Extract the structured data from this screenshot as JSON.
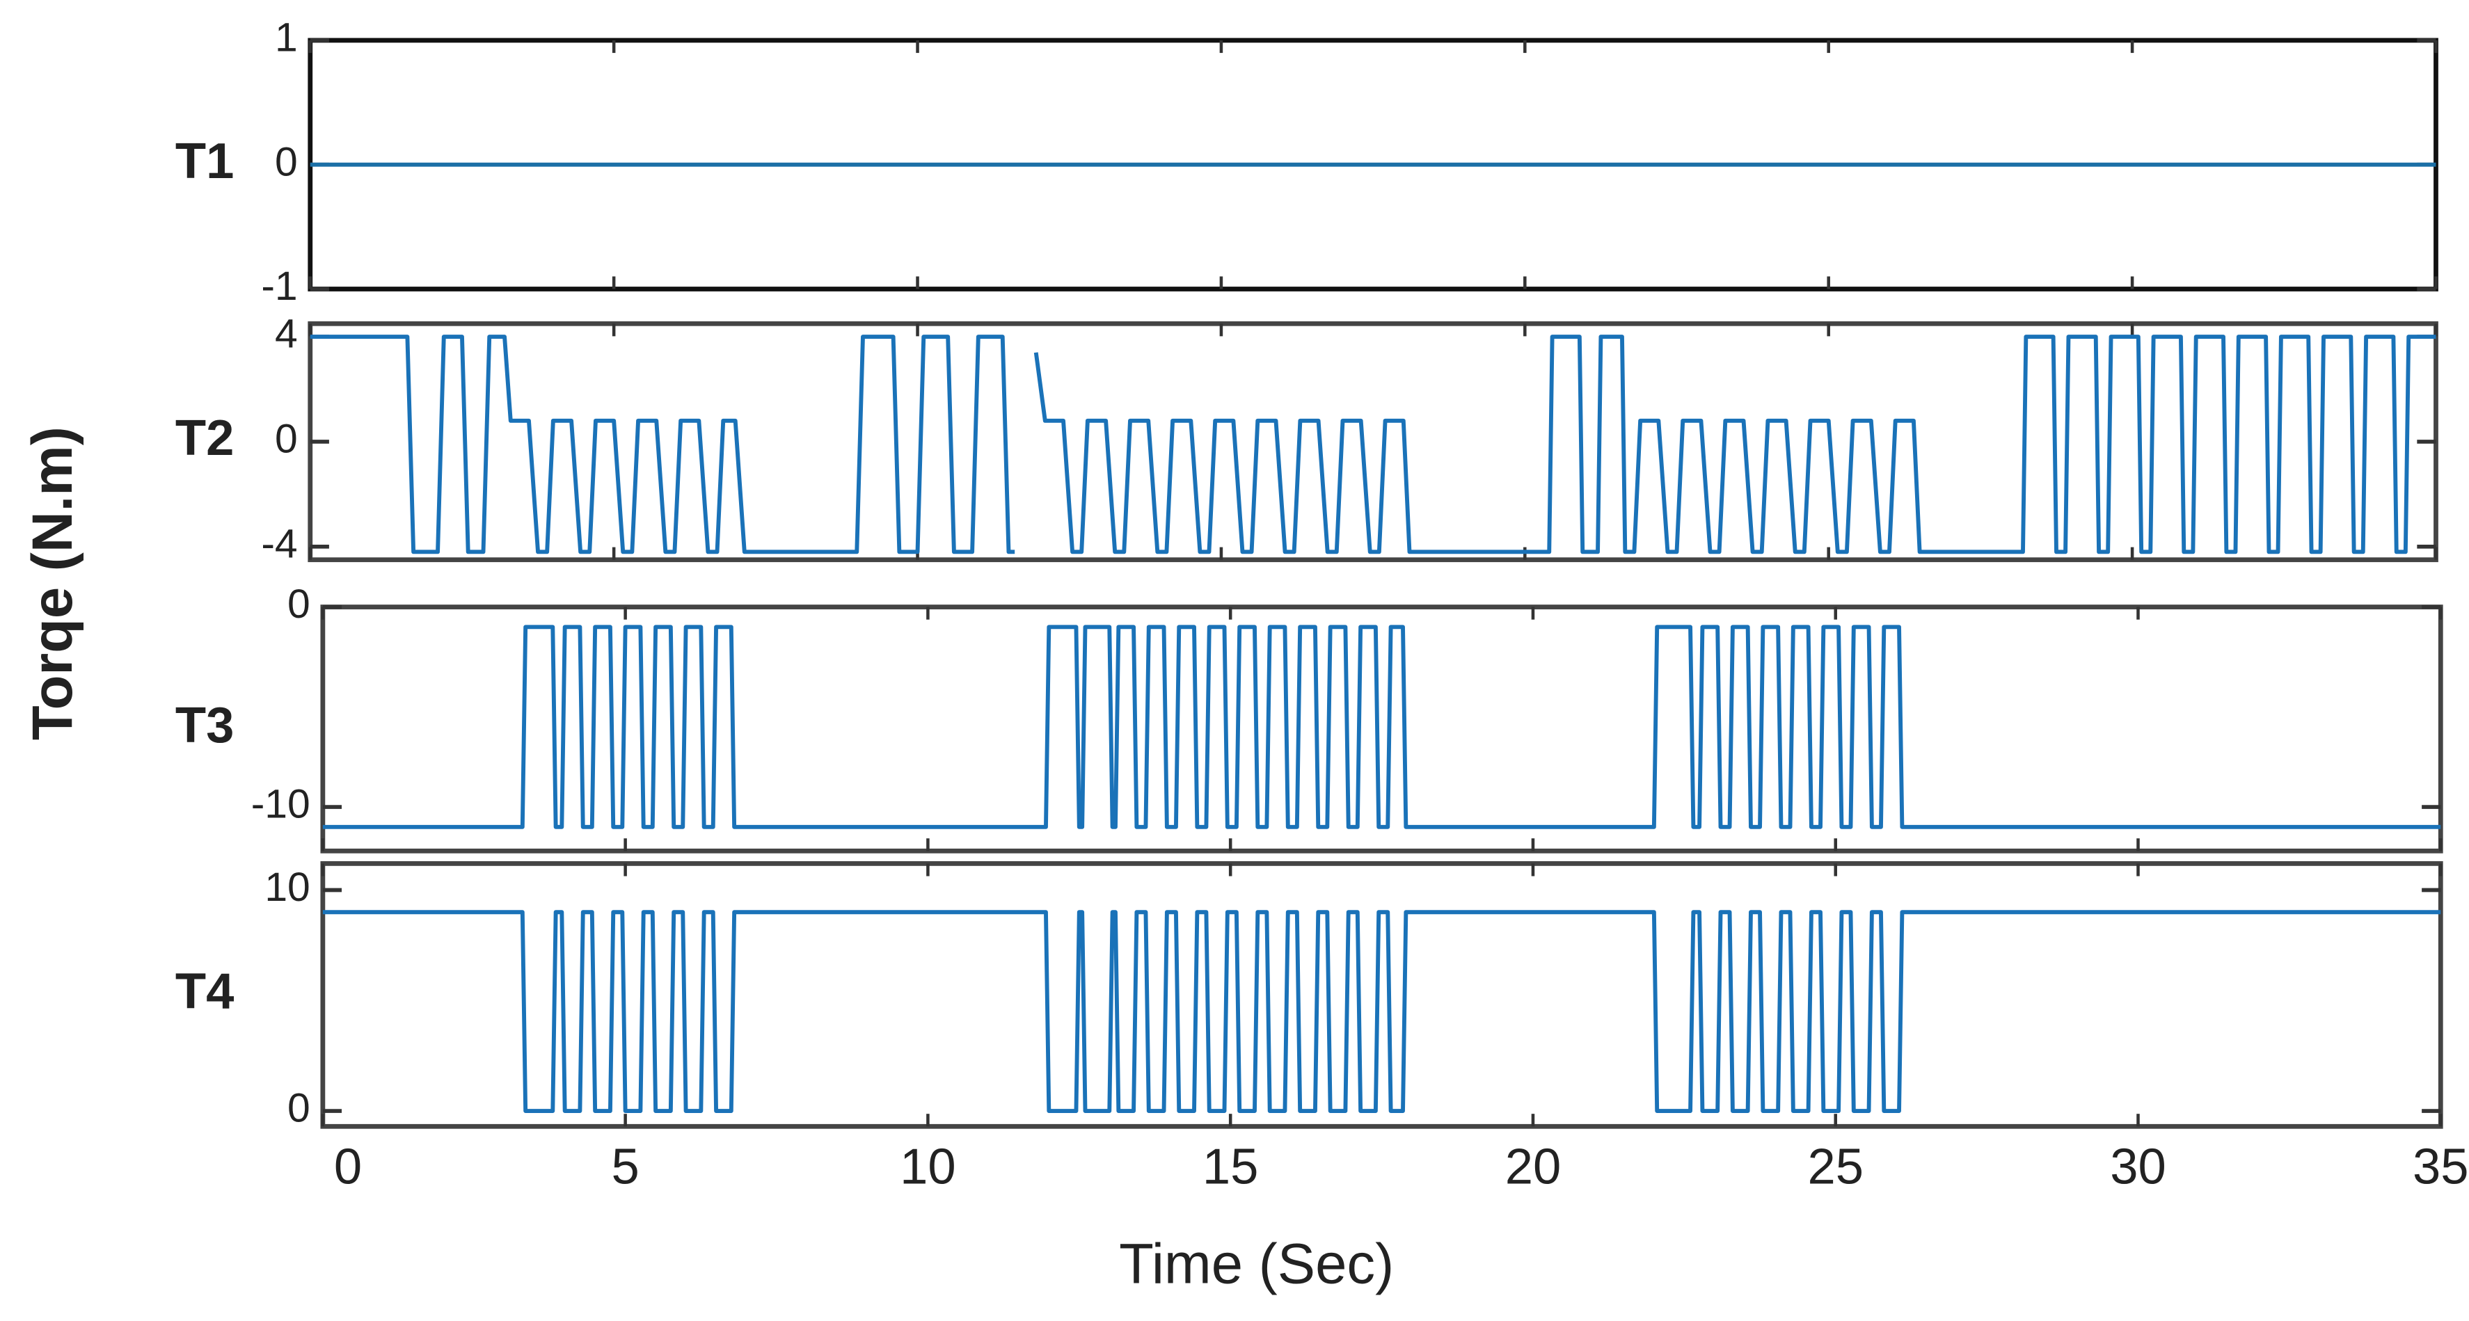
{
  "figure": {
    "ylabel": "Torqe (N.m)"
  },
  "chart_data": [
    {
      "type": "line",
      "label": "T1",
      "x": [
        0,
        35
      ],
      "series": [
        {
          "color": "#1b6fa6",
          "values": [
            0,
            0
          ]
        }
      ],
      "xlim": [
        0,
        35
      ],
      "ylim": [
        -1,
        1
      ],
      "yticks": [
        -1,
        0,
        1
      ]
    },
    {
      "type": "line",
      "label": "T2",
      "x": [
        0,
        1.6,
        1.7,
        2.1,
        2.2,
        2.5,
        2.6,
        2.85,
        2.95,
        3.2,
        3.3,
        3.6,
        3.75,
        3.9,
        4.0,
        4.3,
        4.45,
        4.6,
        4.7,
        5.0,
        5.15,
        5.3,
        5.4,
        5.7,
        5.85,
        6.0,
        6.1,
        6.4,
        6.55,
        6.7,
        6.8,
        7.0,
        7.15,
        9.0,
        9.1,
        9.6,
        9.7,
        10.0,
        10.1,
        10.5,
        10.6,
        10.9,
        11.0,
        11.4,
        11.5,
        11.6,
        11.75,
        11.95,
        12.1,
        12.4,
        12.55,
        12.7,
        12.8,
        13.1,
        13.25,
        13.4,
        13.5,
        13.8,
        13.95,
        14.1,
        14.2,
        14.5,
        14.65,
        14.8,
        14.9,
        15.2,
        15.35,
        15.5,
        15.6,
        15.9,
        16.05,
        16.2,
        16.3,
        16.6,
        16.75,
        16.9,
        17.0,
        17.3,
        17.45,
        17.6,
        17.7,
        18.0,
        18.1,
        20.4,
        20.45,
        20.9,
        20.95,
        21.2,
        21.25,
        21.6,
        21.65,
        21.8,
        21.9,
        22.2,
        22.35,
        22.5,
        22.6,
        22.9,
        23.05,
        23.2,
        23.3,
        23.6,
        23.75,
        23.9,
        24.0,
        24.3,
        24.45,
        24.6,
        24.7,
        25.0,
        25.15,
        25.3,
        25.4,
        25.7,
        25.85,
        26.0,
        26.1,
        26.4,
        26.5,
        28.2,
        28.25,
        28.7,
        28.75,
        28.9,
        28.95,
        29.4,
        29.45,
        29.6,
        29.65,
        30.1,
        30.15,
        30.3,
        30.35,
        30.8,
        30.85,
        31.0,
        31.05,
        31.5,
        31.55,
        31.7,
        31.75,
        32.2,
        32.25,
        32.4,
        32.45,
        32.9,
        32.95,
        33.1,
        33.15,
        33.6,
        33.65,
        33.8,
        33.85,
        34.3,
        34.35,
        34.5,
        34.55,
        35
      ],
      "series": [
        {
          "color": "#1a72b8",
          "values": [
            4,
            4,
            -4.2,
            -4.2,
            4,
            4,
            -4.2,
            -4.2,
            4,
            4,
            0.8,
            0.8,
            -4.2,
            -4.2,
            0.8,
            0.8,
            -4.2,
            -4.2,
            0.8,
            0.8,
            -4.2,
            -4.2,
            0.8,
            0.8,
            -4.2,
            -4.2,
            0.8,
            0.8,
            -4.2,
            -4.2,
            0.8,
            0.8,
            -4.2,
            -4.2,
            4,
            4,
            -4.2,
            -4.2,
            4,
            4,
            -4.2,
            -4.2,
            4,
            4,
            -4.2,
            -4.2,
            null,
            3.4,
            0.8,
            0.8,
            -4.2,
            -4.2,
            0.8,
            0.8,
            -4.2,
            -4.2,
            0.8,
            0.8,
            -4.2,
            -4.2,
            0.8,
            0.8,
            -4.2,
            -4.2,
            0.8,
            0.8,
            -4.2,
            -4.2,
            0.8,
            0.8,
            -4.2,
            -4.2,
            0.8,
            0.8,
            -4.2,
            -4.2,
            0.8,
            0.8,
            -4.2,
            -4.2,
            0.8,
            0.8,
            -4.2,
            -4.2,
            4,
            4,
            -4.2,
            -4.2,
            4,
            4,
            -4.2,
            -4.2,
            0.8,
            0.8,
            -4.2,
            -4.2,
            0.8,
            0.8,
            -4.2,
            -4.2,
            0.8,
            0.8,
            -4.2,
            -4.2,
            0.8,
            0.8,
            -4.2,
            -4.2,
            0.8,
            0.8,
            -4.2,
            -4.2,
            0.8,
            0.8,
            -4.2,
            -4.2,
            0.8,
            0.8,
            -4.2,
            -4.2,
            4,
            4,
            -4.2,
            -4.2,
            4,
            4,
            -4.2,
            -4.2,
            4,
            4,
            -4.2,
            -4.2,
            4,
            4,
            -4.2,
            -4.2,
            4,
            4,
            -4.2,
            -4.2,
            4,
            4,
            -4.2,
            -4.2,
            4,
            4,
            -4.2,
            -4.2,
            4,
            4,
            -4.2,
            -4.2,
            4,
            4,
            -4.2,
            -4.2,
            4,
            4
          ]
        }
      ],
      "xlim": [
        0,
        35
      ],
      "ylim": [
        -4.5,
        4.5
      ],
      "yticks": [
        -4,
        0,
        4
      ]
    },
    {
      "type": "line",
      "label": "T3",
      "x": [
        0,
        3.3,
        3.35,
        3.8,
        3.85,
        3.95,
        4.0,
        4.25,
        4.3,
        4.45,
        4.5,
        4.75,
        4.8,
        4.95,
        5.0,
        5.25,
        5.3,
        5.45,
        5.5,
        5.75,
        5.8,
        5.95,
        6.0,
        6.25,
        6.3,
        6.45,
        6.5,
        6.75,
        6.8,
        6.95,
        11.95,
        12.0,
        12.45,
        12.5,
        12.55,
        12.6,
        13.0,
        13.05,
        13.1,
        13.15,
        13.4,
        13.45,
        13.6,
        13.65,
        13.9,
        13.95,
        14.1,
        14.15,
        14.4,
        14.45,
        14.6,
        14.65,
        14.9,
        14.95,
        15.1,
        15.15,
        15.4,
        15.45,
        15.6,
        15.65,
        15.9,
        15.95,
        16.1,
        16.15,
        16.4,
        16.45,
        16.6,
        16.65,
        16.9,
        16.95,
        17.1,
        17.15,
        17.4,
        17.45,
        17.6,
        17.65,
        17.85,
        17.9,
        22.0,
        22.05,
        22.6,
        22.65,
        22.75,
        22.8,
        23.05,
        23.1,
        23.25,
        23.3,
        23.55,
        23.6,
        23.75,
        23.8,
        24.05,
        24.1,
        24.25,
        24.3,
        24.55,
        24.6,
        24.75,
        24.8,
        25.05,
        25.1,
        25.25,
        25.3,
        25.55,
        25.6,
        25.75,
        25.8,
        26.05,
        26.1,
        26.25,
        35
      ],
      "series": [
        {
          "color": "#1a72b8",
          "values": [
            -11,
            -11,
            -1,
            -1,
            -11,
            -11,
            -1,
            -1,
            -11,
            -11,
            -1,
            -1,
            -11,
            -11,
            -1,
            -1,
            -11,
            -11,
            -1,
            -1,
            -11,
            -11,
            -1,
            -1,
            -11,
            -11,
            -1,
            -1,
            -11,
            -11,
            -11,
            -1,
            -1,
            -11,
            -11,
            -1,
            -1,
            -11,
            -11,
            -1,
            -1,
            -11,
            -11,
            -1,
            -1,
            -11,
            -11,
            -1,
            -1,
            -11,
            -11,
            -1,
            -1,
            -11,
            -11,
            -1,
            -1,
            -11,
            -11,
            -1,
            -1,
            -11,
            -11,
            -1,
            -1,
            -11,
            -11,
            -1,
            -1,
            -11,
            -11,
            -1,
            -1,
            -11,
            -11,
            -1,
            -1,
            -11,
            -11,
            -1,
            -1,
            -11,
            -11,
            -1,
            -1,
            -11,
            -11,
            -1,
            -1,
            -11,
            -11,
            -1,
            -1,
            -11,
            -11,
            -1,
            -1,
            -11,
            -11,
            -1,
            -1,
            -11,
            -11,
            -1,
            -1,
            -11,
            -11,
            -1,
            -1,
            -11,
            -11,
            -11
          ]
        }
      ],
      "xlim": [
        0,
        35
      ],
      "ylim": [
        -12.2,
        0
      ],
      "yticks": [
        -10,
        0
      ]
    },
    {
      "type": "line",
      "label": "T4",
      "xlabel": "Time (Sec)",
      "x": [
        0,
        3.3,
        3.35,
        3.8,
        3.85,
        3.95,
        4.0,
        4.25,
        4.3,
        4.45,
        4.5,
        4.75,
        4.8,
        4.95,
        5.0,
        5.25,
        5.3,
        5.45,
        5.5,
        5.75,
        5.8,
        5.95,
        6.0,
        6.25,
        6.3,
        6.45,
        6.5,
        6.75,
        6.8,
        6.95,
        11.95,
        12.0,
        12.45,
        12.5,
        12.55,
        12.6,
        13.0,
        13.05,
        13.1,
        13.15,
        13.4,
        13.45,
        13.6,
        13.65,
        13.9,
        13.95,
        14.1,
        14.15,
        14.4,
        14.45,
        14.6,
        14.65,
        14.9,
        14.95,
        15.1,
        15.15,
        15.4,
        15.45,
        15.6,
        15.65,
        15.9,
        15.95,
        16.1,
        16.15,
        16.4,
        16.45,
        16.6,
        16.65,
        16.9,
        16.95,
        17.1,
        17.15,
        17.4,
        17.45,
        17.6,
        17.65,
        17.85,
        17.9,
        22.0,
        22.05,
        22.6,
        22.65,
        22.75,
        22.8,
        23.05,
        23.1,
        23.25,
        23.3,
        23.55,
        23.6,
        23.75,
        23.8,
        24.05,
        24.1,
        24.25,
        24.3,
        24.55,
        24.6,
        24.75,
        24.8,
        25.05,
        25.1,
        25.25,
        25.3,
        25.55,
        25.6,
        25.75,
        25.8,
        26.05,
        26.1,
        26.25,
        35
      ],
      "series": [
        {
          "color": "#1a72b8",
          "values": [
            9,
            9,
            0,
            0,
            9,
            9,
            0,
            0,
            9,
            9,
            0,
            0,
            9,
            9,
            0,
            0,
            9,
            9,
            0,
            0,
            9,
            9,
            0,
            0,
            9,
            9,
            0,
            0,
            9,
            9,
            9,
            0,
            0,
            9,
            9,
            0,
            0,
            9,
            9,
            0,
            0,
            9,
            9,
            0,
            0,
            9,
            9,
            0,
            0,
            9,
            9,
            0,
            0,
            9,
            9,
            0,
            0,
            9,
            9,
            0,
            0,
            9,
            9,
            0,
            0,
            9,
            9,
            0,
            0,
            9,
            9,
            0,
            0,
            9,
            9,
            0,
            0,
            9,
            9,
            0,
            0,
            9,
            9,
            0,
            0,
            9,
            9,
            0,
            0,
            9,
            9,
            0,
            0,
            9,
            9,
            0,
            0,
            9,
            9,
            0,
            0,
            9,
            9,
            0,
            0,
            9,
            9,
            0,
            0,
            9,
            9,
            9
          ]
        }
      ],
      "xlim": [
        0,
        35
      ],
      "ylim": [
        -0.7,
        11.2
      ],
      "yticks": [
        0,
        10
      ],
      "xticks": [
        0,
        5,
        10,
        15,
        20,
        25,
        30,
        35
      ]
    }
  ]
}
